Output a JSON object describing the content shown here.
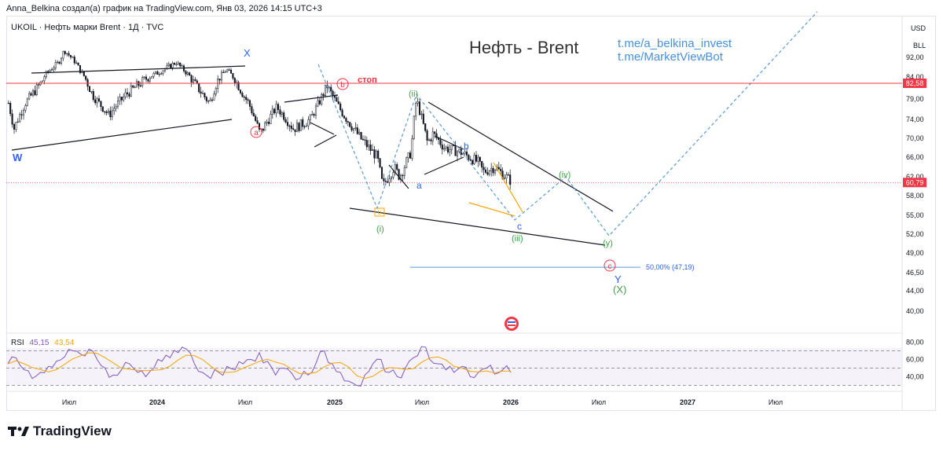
{
  "header": {
    "credit": "Anna_Belkina создал(а) график на TradingView.com, Янв 03, 2026 14:15 UTC+3",
    "symbol_line": "UKOIL · Нефть марки Brent · 1Д · TVC",
    "currency": "USD",
    "unit": "BLL"
  },
  "annotations": {
    "title": "Нефть - Brent",
    "link1": "t.me/a_belkina_invest",
    "link2": "t.me/MarketViewBot",
    "stop_label": "стоп",
    "fib_label": "50,00% (47,19)"
  },
  "chart_data": {
    "type": "line",
    "series_kind": "candlestick price",
    "y_ticks": [
      40.0,
      44.0,
      46.5,
      49.0,
      52.0,
      55.0,
      58.0,
      62.0,
      66.0,
      70.0,
      74.0,
      79.0,
      84.0,
      92.0
    ],
    "y_tick_labels": [
      "40,00",
      "44,00",
      "46,50",
      "49,00",
      "52,00",
      "55,00",
      "58,00",
      "62,00",
      "66,00",
      "70,00",
      "74,00",
      "79,00",
      "84,00",
      "92,00"
    ],
    "x_tick_labels": [
      "Июл",
      "2024",
      "Июл",
      "2025",
      "Июл",
      "2026",
      "Июл",
      "2027",
      "Июл"
    ],
    "x_tick_bold": [
      false,
      true,
      false,
      true,
      false,
      true,
      false,
      true,
      false
    ],
    "stop_level": 82.58,
    "stop_level_label": "82,58",
    "last_price": 60.79,
    "last_price_label": "60,79",
    "fib_level": 47.19,
    "price_path": [
      {
        "x": "2023-06",
        "y": 78
      },
      {
        "x": "2023-06",
        "y": 72
      },
      {
        "x": "2023-07",
        "y": 78
      },
      {
        "x": "2023-08",
        "y": 83
      },
      {
        "x": "2023-08",
        "y": 86
      },
      {
        "x": "2023-09",
        "y": 90
      },
      {
        "x": "2023-09",
        "y": 95
      },
      {
        "x": "2023-10",
        "y": 90
      },
      {
        "x": "2023-10",
        "y": 86
      },
      {
        "x": "2023-11",
        "y": 80
      },
      {
        "x": "2023-12",
        "y": 75
      },
      {
        "x": "2023-12",
        "y": 77
      },
      {
        "x": "2024-01",
        "y": 80
      },
      {
        "x": "2024-02",
        "y": 83
      },
      {
        "x": "2024-03",
        "y": 86
      },
      {
        "x": "2024-04",
        "y": 90
      },
      {
        "x": "2024-05",
        "y": 83
      },
      {
        "x": "2024-06",
        "y": 78
      },
      {
        "x": "2024-06",
        "y": 82
      },
      {
        "x": "2024-07",
        "y": 87
      },
      {
        "x": "2024-08",
        "y": 80
      },
      {
        "x": "2024-08",
        "y": 78
      },
      {
        "x": "2024-09",
        "y": 71
      },
      {
        "x": "2024-10",
        "y": 77
      },
      {
        "x": "2024-11",
        "y": 72
      },
      {
        "x": "2024-12",
        "y": 74
      },
      {
        "x": "2025-01",
        "y": 82
      },
      {
        "x": "2025-02",
        "y": 75
      },
      {
        "x": "2025-03",
        "y": 70
      },
      {
        "x": "2025-04",
        "y": 66
      },
      {
        "x": "2025-04",
        "y": 60
      },
      {
        "x": "2025-05",
        "y": 64
      },
      {
        "x": "2025-05",
        "y": 62
      },
      {
        "x": "2025-06",
        "y": 67
      },
      {
        "x": "2025-06",
        "y": 79
      },
      {
        "x": "2025-07",
        "y": 69
      },
      {
        "x": "2025-07",
        "y": 71
      },
      {
        "x": "2025-08",
        "y": 68
      },
      {
        "x": "2025-09",
        "y": 67
      },
      {
        "x": "2025-10",
        "y": 65
      },
      {
        "x": "2025-10",
        "y": 63
      },
      {
        "x": "2025-11",
        "y": 64
      },
      {
        "x": "2025-12",
        "y": 61
      },
      {
        "x": "2025-12",
        "y": 60.79
      }
    ],
    "rsi": {
      "label": "RSI",
      "value": "45,15",
      "ma_value": "43,54",
      "levels": [
        80,
        70,
        60,
        50,
        40,
        30
      ],
      "tick_labels": [
        "80,00",
        "60,00",
        "40,00"
      ],
      "values": [
        55,
        62,
        48,
        38,
        45,
        52,
        58,
        63,
        70,
        66,
        72,
        60,
        50,
        42,
        48,
        55,
        45,
        40,
        50,
        58,
        62,
        68,
        72,
        55,
        45,
        38,
        45,
        52,
        48,
        55,
        60,
        68,
        58,
        42,
        50,
        44,
        38,
        42,
        56,
        70,
        55,
        45,
        35,
        30,
        42,
        55,
        60,
        45,
        40,
        50,
        62,
        75,
        60,
        55,
        48,
        45,
        52,
        40,
        45,
        50,
        43,
        48,
        45
      ]
    },
    "wave_labels": [
      "W",
      "X",
      "Y",
      "a",
      "b",
      "c",
      "b",
      "c",
      "a",
      "b",
      "c",
      "(i)",
      "(ii)",
      "(iii)",
      "(iv)",
      "(y)",
      "(X)"
    ]
  },
  "colors": {
    "stop_line": "#f23645",
    "last_price_line": "#f23645",
    "fib_line": "#5b9bd5",
    "wave_blue": "#2962ff",
    "wave_green": "#43a047",
    "wave_red": "#f23645",
    "rsi_line": "#7e57c2",
    "rsi_ma": "#f7a600",
    "link": "#4a90d9"
  }
}
